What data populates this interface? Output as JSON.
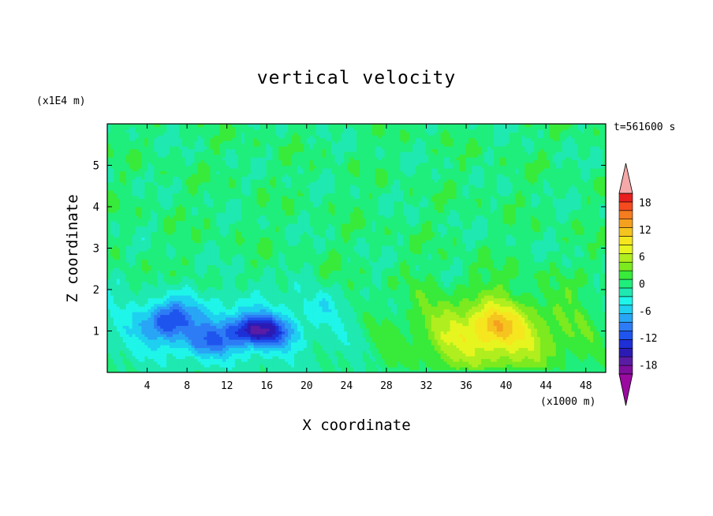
{
  "chart_data": {
    "type": "heatmap",
    "title": "vertical velocity",
    "xlabel": "X coordinate",
    "ylabel": "Z coordinate",
    "x_unit": "(x1000 m)",
    "y_unit": "(x1E4 m)",
    "time_label": "t=561600 s",
    "xlim": [
      0,
      50
    ],
    "ylim": [
      0,
      6
    ],
    "x_ticks": [
      "4",
      "8",
      "12",
      "16",
      "20",
      "24",
      "28",
      "32",
      "36",
      "40",
      "44",
      "48"
    ],
    "y_ticks": [
      "1",
      "2",
      "3",
      "4",
      "5"
    ],
    "colorbar": {
      "range": [
        -20,
        20
      ],
      "step": 2,
      "tick_labels": [
        "18",
        "12",
        "6",
        "0",
        "-6",
        "-12",
        "-18"
      ],
      "colors": [
        "#7d0f9d",
        "#5a1ca5",
        "#2b1bb4",
        "#1f2fd6",
        "#1f55ee",
        "#2d7cf5",
        "#28a5f5",
        "#1fd0f0",
        "#1ff5e9",
        "#1fe9b0",
        "#1fee7c",
        "#38ea3a",
        "#7cea1f",
        "#b0ee1f",
        "#e6f51f",
        "#f5e61f",
        "#f5c41f",
        "#f5a01f",
        "#f57c1f",
        "#f54b1f",
        "#e81f1f"
      ],
      "extend_high_color": "#f4a8a8",
      "extend_low_color": "#9a0aa0"
    },
    "features": [
      {
        "name": "updraft",
        "x_center": 38.5,
        "z_center": 1.15,
        "peak_value": 13
      },
      {
        "name": "downdraft",
        "x_center": 15,
        "z_center": 1.0,
        "peak_value": -13
      },
      {
        "name": "downdraft",
        "x_center": 6,
        "z_center": 1.3,
        "peak_value": -10
      }
    ]
  }
}
